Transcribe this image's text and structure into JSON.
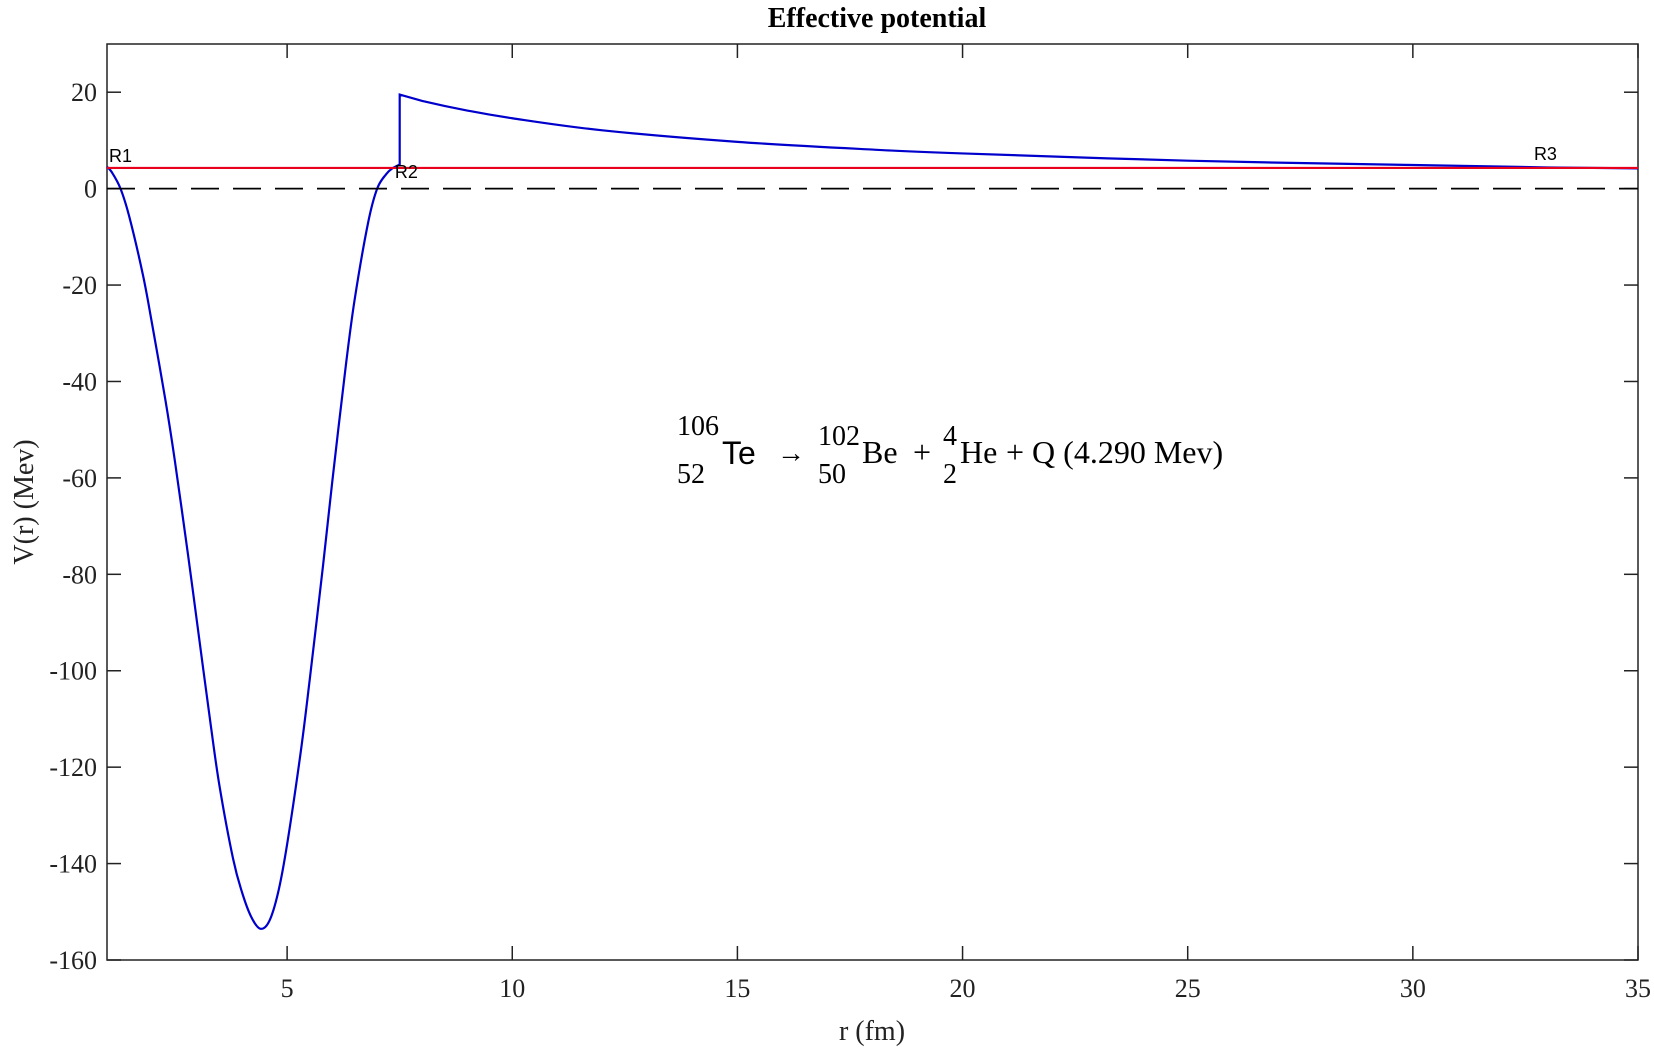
{
  "chart_data": {
    "type": "line",
    "title": "Effective potential",
    "xlabel": "r (fm)",
    "ylabel": "V(r) (Mev)",
    "xlim": [
      1,
      35
    ],
    "ylim": [
      -160,
      30
    ],
    "xticks": [
      5,
      10,
      15,
      20,
      25,
      30,
      35
    ],
    "yticks": [
      20,
      0,
      -20,
      -40,
      -60,
      -80,
      -100,
      -120,
      -140,
      -160
    ],
    "grid": false,
    "series": [
      {
        "name": "",
        "color": "#0000cc",
        "x": [
          1.0,
          1.1,
          1.3,
          1.5,
          1.8,
          2.0,
          2.3,
          2.5,
          2.8,
          3.0,
          3.3,
          3.5,
          3.8,
          4.0,
          4.2,
          4.4,
          4.6,
          4.8,
          5.0,
          5.3,
          5.5,
          5.8,
          6.0,
          6.3,
          6.5,
          6.8,
          7.0,
          7.2,
          7.35,
          7.5,
          7.5,
          8.0,
          9.0,
          10.0,
          12.0,
          15.0,
          18.0,
          20.0,
          25.0,
          30.0,
          33.0,
          35.0
        ],
        "y": [
          4.5,
          3.5,
          0.0,
          -6.0,
          -18.0,
          -28.0,
          -44.0,
          -56.0,
          -76.0,
          -90.0,
          -111.0,
          -124.0,
          -139.0,
          -146.0,
          -151.0,
          -153.5,
          -152.0,
          -146.0,
          -136.0,
          -117.0,
          -102.0,
          -78.0,
          -61.0,
          -37.0,
          -23.0,
          -7.0,
          0.0,
          3.0,
          4.3,
          5.0,
          19.5,
          18.2,
          16.2,
          14.6,
          12.1,
          9.7,
          8.1,
          7.3,
          5.8,
          4.9,
          4.4,
          4.2
        ]
      },
      {
        "name": "",
        "color": "#e8001c",
        "x": [
          1.0,
          35.0
        ],
        "y": [
          4.29,
          4.29
        ]
      },
      {
        "name": "",
        "color": "#000000",
        "dashed": true,
        "x": [
          1.0,
          35.0
        ],
        "y": [
          0.0,
          0.0
        ]
      }
    ],
    "point_labels": [
      {
        "text": "R1",
        "x": 1.0,
        "y": 4.29
      },
      {
        "text": "R2",
        "x": 7.35,
        "y": 4.29
      },
      {
        "text": "R3",
        "x": 33.0,
        "y": 4.29
      }
    ],
    "annotation": {
      "reactant_mass": "106",
      "reactant_charge": "52",
      "reactant_symbol": "Te",
      "arrow": "→",
      "product1_mass": "102",
      "product1_charge": "50",
      "product1_symbol": "Be",
      "plus1": "+",
      "product2_mass": "4",
      "product2_charge": "2",
      "product2_symbol": "He",
      "q_text": "+ Q (4.290 Mev)"
    }
  }
}
